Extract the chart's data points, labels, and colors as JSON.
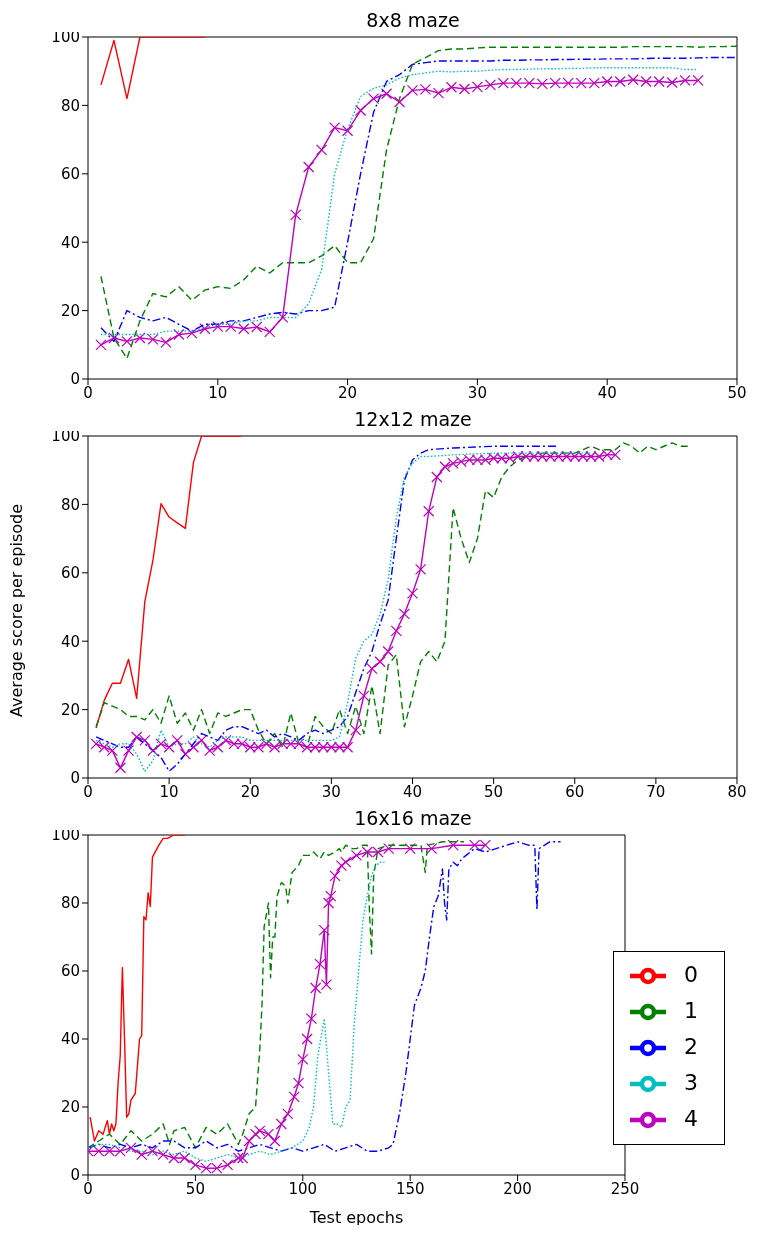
{
  "chart_data": [
    {
      "type": "line",
      "title": "8x8 maze",
      "xlim": [
        0,
        50
      ],
      "xticks": [
        0,
        10,
        20,
        30,
        40,
        50
      ],
      "ylim": [
        0,
        100
      ],
      "yticks": [
        0,
        20,
        40,
        60,
        80,
        100
      ],
      "grid": false,
      "legend": false,
      "series": [
        {
          "color": "#ff0000",
          "line_style": "solid",
          "marker": "none",
          "x": [
            1,
            2,
            3,
            4,
            5,
            6,
            7,
            8,
            9
          ],
          "values": [
            86,
            99,
            82,
            100,
            100,
            100,
            100,
            100,
            100
          ]
        },
        {
          "color": "#008000",
          "line_style": "dashed",
          "marker": "none",
          "x": [
            1,
            2,
            3,
            4,
            5,
            6,
            7,
            8,
            9,
            10,
            11,
            12,
            13,
            14,
            15,
            16,
            17,
            18,
            19,
            20,
            21,
            22,
            23,
            24,
            25,
            26,
            27,
            28,
            29,
            30,
            31,
            32,
            33,
            34,
            35,
            36,
            37,
            38,
            39,
            40,
            41,
            42,
            43,
            44,
            45,
            46,
            47,
            48,
            49,
            50
          ],
          "values": [
            30,
            12,
            6,
            17,
            25,
            24,
            27,
            23,
            26,
            27,
            26.5,
            29,
            33,
            31,
            34,
            34,
            34,
            36,
            39,
            34,
            34,
            41,
            67,
            82,
            92,
            94,
            96,
            96.5,
            96.5,
            96.8,
            97,
            97,
            97,
            97,
            97,
            97,
            97,
            97,
            97,
            97,
            97,
            97.2,
            97.2,
            97.2,
            97.2,
            97.2,
            97,
            97.2,
            97.2,
            97.3
          ]
        },
        {
          "color": "#0000ff",
          "line_style": "dashdot",
          "marker": "none",
          "x": [
            1,
            2,
            3,
            4,
            5,
            6,
            7,
            8,
            9,
            10,
            11,
            12,
            13,
            14,
            15,
            16,
            17,
            18,
            19,
            20,
            21,
            22,
            23,
            24,
            25,
            26,
            27,
            28,
            29,
            30,
            31,
            32,
            33,
            34,
            35,
            36,
            37,
            38,
            39,
            40,
            41,
            42,
            43,
            44,
            45,
            46,
            47,
            48,
            49,
            50
          ],
          "values": [
            15,
            11,
            20,
            18,
            17,
            18,
            16,
            14,
            16,
            16,
            17,
            17,
            18,
            19,
            19.5,
            19,
            20,
            20,
            21,
            40,
            60,
            78,
            87,
            89,
            92,
            92.5,
            93,
            93,
            93,
            93,
            93,
            93.2,
            93.2,
            93.3,
            93.3,
            93.4,
            93.4,
            93.5,
            93.5,
            93.6,
            93.6,
            93.6,
            93.7,
            93.8,
            93.8,
            93.8,
            93.9,
            94,
            94,
            94
          ]
        },
        {
          "color": "#00bfbf",
          "line_style": "dotted",
          "marker": "none",
          "x": [
            1,
            2,
            3,
            4,
            5,
            6,
            7,
            8,
            9,
            10,
            11,
            12,
            13,
            14,
            15,
            16,
            17,
            18,
            19,
            20,
            21,
            22,
            23,
            24,
            25,
            26,
            27,
            28,
            29,
            30,
            31,
            32,
            33,
            34,
            35,
            36,
            37,
            38,
            39,
            40,
            41,
            42,
            43,
            44,
            45,
            46,
            47
          ],
          "values": [
            13,
            13,
            13,
            13,
            13,
            14,
            14,
            14,
            15,
            16,
            16,
            17,
            17,
            18,
            18,
            18,
            22,
            32,
            60,
            73,
            82.6,
            85,
            86,
            88,
            89,
            89.5,
            90,
            89.8,
            90,
            90,
            90.3,
            90.5,
            90.5,
            90.6,
            90.7,
            90.7,
            90.8,
            90.8,
            91,
            91,
            91,
            91,
            91,
            91,
            91,
            90.5,
            90.5
          ]
        },
        {
          "color": "#bf00bf",
          "line_style": "solid",
          "marker": "cross",
          "x": [
            1,
            2,
            3,
            4,
            5,
            6,
            7,
            8,
            9,
            10,
            11,
            12,
            13,
            14,
            15,
            16,
            17,
            18,
            19,
            20,
            21,
            22,
            23,
            24,
            25,
            26,
            27,
            28,
            29,
            30,
            31,
            32,
            33,
            34,
            35,
            36,
            37,
            38,
            39,
            40,
            41,
            42,
            43,
            44,
            45,
            46,
            47
          ],
          "values": [
            10,
            12,
            11,
            12,
            11.6,
            10.7,
            13,
            13.4,
            14.7,
            15.3,
            15.3,
            14.7,
            15.2,
            13.8,
            18,
            48,
            62,
            67,
            73.5,
            72.6,
            78.5,
            82,
            83.4,
            81,
            84.4,
            84.7,
            83.6,
            85.3,
            84.8,
            85.4,
            86,
            86.5,
            86.5,
            86.5,
            86.3,
            86.5,
            86.5,
            86.5,
            86.5,
            87,
            87,
            87.5,
            87,
            87,
            86.7,
            87.3,
            87.3
          ]
        }
      ]
    },
    {
      "type": "line",
      "title": "12x12 maze",
      "ylabel": "Average score per episode",
      "xlim": [
        0,
        80
      ],
      "xticks": [
        0,
        10,
        20,
        30,
        40,
        50,
        60,
        70,
        80
      ],
      "ylim": [
        0,
        100
      ],
      "yticks": [
        0,
        20,
        40,
        60,
        80,
        100
      ],
      "grid": false,
      "legend": false,
      "series": [
        {
          "color": "#ff0000",
          "line_style": "solid",
          "marker": "none",
          "x": [
            1,
            2,
            3,
            4,
            5,
            6,
            7,
            8,
            9,
            10,
            11,
            12,
            13,
            14,
            15,
            16,
            17,
            18,
            19
          ],
          "values": [
            14.6,
            22.7,
            27.7,
            27.7,
            34.7,
            23.3,
            51.5,
            63.6,
            80.2,
            76.3,
            74.6,
            73,
            92.3,
            100,
            100,
            100,
            100,
            100,
            100
          ]
        },
        {
          "color": "#008000",
          "line_style": "dashed",
          "marker": "none",
          "x": [
            1,
            2,
            3,
            4,
            5,
            6,
            7,
            8,
            9,
            10,
            11,
            12,
            13,
            14,
            15,
            16,
            17,
            18,
            19,
            20,
            21,
            22,
            23,
            24,
            25,
            26,
            27,
            28,
            29,
            30,
            31,
            32,
            33,
            34,
            35,
            36,
            37,
            38,
            39,
            40,
            41,
            42,
            43,
            44,
            45,
            46,
            47,
            48,
            49,
            50,
            51,
            52,
            53,
            54,
            55,
            56,
            57,
            58,
            59,
            60,
            61,
            62,
            63,
            64,
            65,
            66,
            67,
            68,
            69,
            70,
            71,
            72,
            73,
            74
          ],
          "values": [
            15,
            22,
            21,
            20,
            18,
            18,
            17,
            20,
            16,
            24,
            16,
            19,
            14,
            20,
            13,
            19,
            18,
            19,
            20,
            20,
            14,
            10,
            13,
            9,
            19,
            10,
            9,
            18,
            15,
            13,
            20,
            13,
            21,
            13,
            27,
            13,
            33,
            36,
            15,
            24,
            34,
            37,
            34,
            40,
            79,
            70,
            63,
            70,
            84,
            82,
            88,
            91,
            93,
            94,
            94,
            95,
            95,
            95,
            95,
            95,
            96,
            97,
            96,
            96,
            96,
            98,
            97,
            95,
            97,
            96,
            97,
            98,
            97,
            97
          ]
        },
        {
          "color": "#0000ff",
          "line_style": "dashdot",
          "marker": "none",
          "x": [
            1,
            2,
            3,
            4,
            5,
            6,
            7,
            8,
            9,
            10,
            11,
            12,
            13,
            14,
            15,
            16,
            17,
            18,
            19,
            20,
            21,
            22,
            23,
            24,
            25,
            26,
            27,
            28,
            29,
            30,
            31,
            32,
            33,
            34,
            35,
            36,
            37,
            38,
            39,
            40,
            41,
            42,
            45,
            50,
            55,
            58
          ],
          "values": [
            12,
            11,
            10,
            9,
            9,
            12,
            10,
            8,
            6,
            2,
            4,
            7,
            10,
            13,
            12,
            11,
            14,
            15,
            15,
            14,
            13,
            14,
            12,
            13,
            12,
            11,
            13,
            14,
            13,
            14,
            15,
            18,
            25,
            32,
            37,
            45,
            52,
            70,
            87,
            93,
            95,
            96,
            96.5,
            97,
            97,
            97
          ]
        },
        {
          "color": "#00bfbf",
          "line_style": "dotted",
          "marker": "none",
          "x": [
            1,
            2,
            3,
            4,
            5,
            6,
            7,
            8,
            9,
            10,
            11,
            12,
            13,
            14,
            15,
            16,
            17,
            18,
            19,
            20,
            25,
            30,
            31,
            32,
            33,
            34,
            35,
            36,
            37,
            38,
            39,
            40,
            41,
            42,
            45,
            50,
            55,
            62
          ],
          "values": [
            11,
            10,
            9,
            10,
            10,
            7,
            2,
            5,
            14,
            9,
            10,
            10,
            12,
            10,
            9,
            11,
            12,
            12,
            12,
            11,
            11,
            11,
            12,
            22,
            35,
            40,
            42,
            48,
            58,
            76,
            88,
            92,
            94,
            94,
            94.5,
            95,
            95,
            95
          ]
        },
        {
          "color": "#bf00bf",
          "line_style": "solid",
          "marker": "cross",
          "x": [
            1,
            2,
            3,
            4,
            5,
            6,
            7,
            8,
            9,
            10,
            11,
            12,
            13,
            14,
            15,
            16,
            17,
            18,
            19,
            20,
            21,
            22,
            23,
            24,
            25,
            26,
            27,
            28,
            29,
            30,
            31,
            32,
            33,
            34,
            35,
            36,
            37,
            38,
            39,
            40,
            41,
            42,
            43,
            44,
            45,
            46,
            47,
            48,
            49,
            50,
            51,
            52,
            53,
            54,
            55,
            56,
            57,
            58,
            59,
            60,
            61,
            62,
            63,
            64,
            65
          ],
          "values": [
            10,
            9,
            8,
            3,
            8,
            12,
            11,
            8,
            10,
            9,
            11,
            7,
            9,
            11,
            8,
            9,
            11,
            10,
            10,
            9,
            9,
            10,
            9,
            10,
            10,
            10,
            9,
            9,
            9,
            9,
            9,
            9,
            14,
            24,
            32,
            34,
            37,
            43,
            48,
            54,
            61,
            78,
            88,
            91,
            92,
            92.5,
            93,
            93,
            93,
            93.5,
            93.5,
            93.5,
            94,
            94,
            94,
            94,
            94,
            94,
            94,
            94,
            94,
            94,
            94,
            94.5,
            94.5
          ]
        }
      ]
    },
    {
      "type": "line",
      "title": "16x16 maze",
      "xlabel": "Test epochs",
      "xlim": [
        0,
        250
      ],
      "xticks": [
        0,
        50,
        100,
        150,
        200,
        250
      ],
      "ylim": [
        0,
        100
      ],
      "yticks": [
        0,
        20,
        40,
        60,
        80,
        100
      ],
      "grid": false,
      "legend": "bottom right",
      "series": [
        {
          "name": "0",
          "color": "#ff0000",
          "line_style": "solid",
          "marker": "none",
          "x": [
            1,
            3,
            5,
            7,
            9,
            10,
            11,
            12,
            13,
            14,
            15,
            16,
            17,
            18,
            19,
            20,
            22,
            24,
            25,
            26,
            27,
            28,
            29,
            30,
            33,
            35,
            37,
            40,
            45
          ],
          "values": [
            17,
            10,
            13,
            12,
            16,
            12,
            15,
            13,
            15,
            27,
            35,
            61,
            40,
            17,
            18,
            22,
            24,
            40,
            41,
            76,
            75,
            83,
            79,
            93.5,
            97,
            99,
            99,
            100,
            100
          ]
        },
        {
          "name": "1",
          "color": "#008000",
          "line_style": "dashed",
          "marker": "none",
          "x": [
            0,
            5,
            10,
            15,
            20,
            25,
            30,
            35,
            38,
            40,
            45,
            50,
            55,
            60,
            65,
            70,
            72,
            75,
            78,
            80,
            81,
            82,
            84,
            85,
            86,
            87,
            88,
            90,
            92,
            93,
            95,
            98,
            100,
            103,
            105,
            108,
            110,
            112,
            115,
            117,
            118,
            120,
            123,
            125,
            128,
            130,
            131,
            132,
            133,
            135,
            140,
            145,
            150,
            155,
            157,
            158,
            165,
            170,
            175
          ],
          "values": [
            8,
            10,
            12,
            9,
            13,
            10,
            12,
            15,
            9,
            13,
            14,
            8,
            14,
            12,
            15,
            9,
            12,
            18,
            20,
            37,
            50,
            73,
            80,
            58,
            70,
            70,
            82,
            86,
            85,
            80,
            89,
            91,
            94,
            94,
            95,
            93,
            95,
            94,
            95,
            96,
            95,
            97,
            96,
            96,
            97,
            97,
            78,
            65,
            88,
            96,
            97,
            97,
            97,
            97,
            89,
            97,
            98,
            98,
            98
          ]
        },
        {
          "name": "2",
          "color": "#0000ff",
          "line_style": "dashdot",
          "marker": "none",
          "x": [
            0,
            5,
            10,
            15,
            20,
            25,
            30,
            35,
            40,
            45,
            50,
            55,
            60,
            65,
            70,
            75,
            80,
            85,
            90,
            95,
            100,
            105,
            110,
            115,
            120,
            125,
            130,
            135,
            140,
            142,
            145,
            148,
            150,
            152,
            155,
            157,
            159,
            161,
            163,
            165,
            166,
            167,
            168,
            170,
            172,
            174,
            176,
            178,
            180,
            185,
            190,
            195,
            200,
            205,
            208,
            209,
            210,
            215,
            220
          ],
          "values": [
            8,
            9,
            8,
            9,
            8,
            9,
            8,
            10,
            10,
            8,
            8,
            10,
            8,
            9,
            7,
            8,
            9,
            8,
            7,
            8,
            7,
            8,
            9,
            7,
            8,
            9,
            7,
            7,
            8,
            9,
            18,
            30,
            40,
            50,
            55,
            60,
            70,
            79,
            82,
            90,
            80,
            75,
            90,
            92,
            91,
            93,
            94,
            95,
            96,
            95,
            96,
            97,
            98,
            97,
            97,
            78,
            96,
            98,
            98
          ]
        },
        {
          "name": "3",
          "color": "#00bfbf",
          "line_style": "dotted",
          "marker": "none",
          "x": [
            0,
            5,
            10,
            15,
            20,
            25,
            30,
            35,
            40,
            45,
            50,
            55,
            60,
            65,
            70,
            75,
            80,
            85,
            90,
            95,
            100,
            103,
            105,
            107,
            110,
            112,
            114,
            116,
            118,
            120,
            122,
            124,
            126,
            128,
            130,
            132,
            134,
            136,
            138
          ],
          "values": [
            8,
            9,
            9,
            8,
            7,
            7,
            6,
            7,
            6,
            7,
            5,
            4,
            5,
            6,
            5,
            6,
            7,
            6,
            7,
            8,
            10,
            14,
            20,
            35,
            46,
            30,
            15,
            15,
            14,
            20,
            22,
            45,
            60,
            75,
            82,
            88,
            91,
            92,
            92
          ]
        },
        {
          "name": "4",
          "color": "#bf00bf",
          "line_style": "solid",
          "marker": "cross",
          "x": [
            0,
            5,
            10,
            15,
            20,
            25,
            30,
            35,
            40,
            45,
            50,
            55,
            60,
            65,
            70,
            72,
            75,
            78,
            80,
            84,
            87,
            90,
            93,
            96,
            98,
            100,
            102,
            104,
            106,
            108,
            110,
            111,
            112,
            113,
            115,
            118,
            120,
            125,
            130,
            135,
            140,
            150,
            160,
            170,
            180,
            185
          ],
          "values": [
            7,
            7,
            7,
            7,
            8,
            6,
            7,
            6,
            5,
            5,
            3,
            2,
            2,
            3,
            5,
            5,
            10,
            12,
            13,
            12,
            10,
            15,
            18,
            23,
            27,
            34,
            40,
            46,
            55,
            62,
            72,
            56,
            80,
            82,
            88,
            91,
            92,
            94,
            95,
            95,
            96,
            96,
            96,
            97,
            97,
            97
          ]
        }
      ]
    }
  ]
}
